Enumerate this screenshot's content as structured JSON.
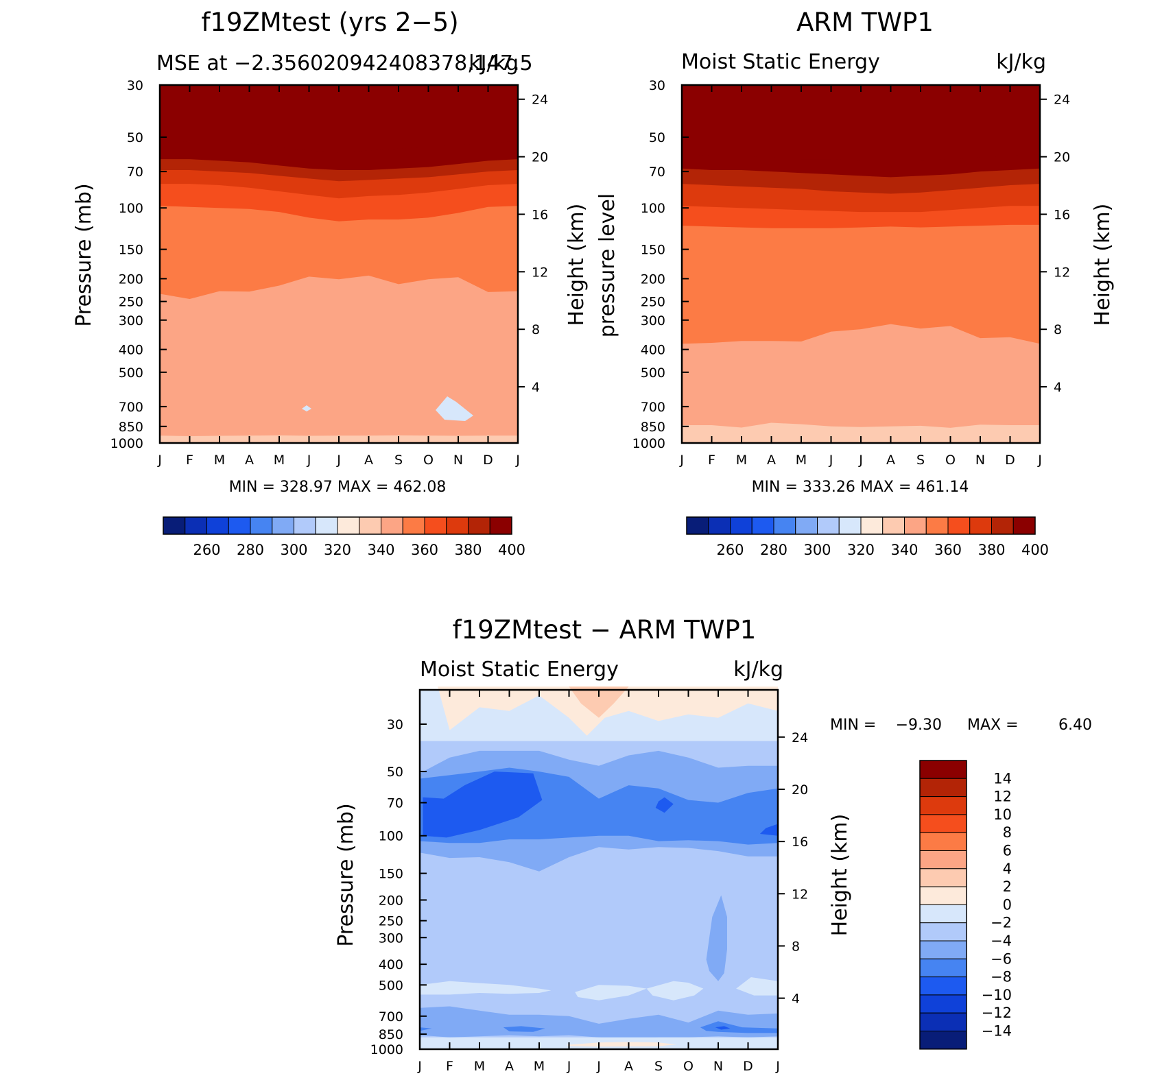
{
  "chart_data": [
    {
      "type": "heatmap",
      "panel": "model",
      "title": "f19ZMtest (yrs 2−5)",
      "subtitle_left": "MSE at −2.356020942408378,147.5",
      "subtitle_right": "kJ/kg",
      "ylabel": "Pressure (mb)",
      "ylabel_right": "Height (km)",
      "minmax": "MIN = 328.97 MAX = 462.08",
      "x": [
        "J",
        "F",
        "M",
        "A",
        "M",
        "J",
        "J",
        "A",
        "S",
        "O",
        "N",
        "D",
        "J"
      ],
      "y_ticks": [
        "30",
        "50",
        "70",
        "100",
        "150",
        "200",
        "250",
        "300",
        "400",
        "500",
        "700",
        "850",
        "1000"
      ],
      "height_ticks": [
        "24",
        "20",
        "16",
        "12",
        "8",
        "4"
      ],
      "contour_levels_bottom_to_top": [
        340,
        350,
        360,
        370,
        380,
        390,
        400
      ],
      "contour_level_pressures": {
        "340": [
          930,
          935,
          932,
          930,
          928,
          932,
          930,
          930,
          928,
          930,
          932,
          930,
          930
        ],
        "350": [
          232,
          244,
          226,
          227,
          214,
          196,
          201,
          194,
          211,
          201,
          197,
          228,
          226
        ],
        "360": [
          98,
          99,
          100,
          101,
          104,
          110,
          114,
          112,
          112,
          110,
          105,
          99,
          98
        ],
        "370": [
          79,
          79,
          80,
          82,
          85,
          88,
          91,
          89,
          88,
          86,
          83,
          80,
          79
        ],
        "380": [
          69,
          69,
          70,
          71,
          73,
          75,
          77,
          76,
          75,
          74,
          72,
          70,
          69
        ],
        "390": [
          62,
          62,
          63,
          64,
          66,
          68,
          69,
          69,
          68,
          67,
          65,
          63,
          62
        ],
        "400": [
          53,
          52,
          52,
          53,
          55,
          57,
          58,
          57,
          56,
          55,
          54,
          53,
          52
        ]
      },
      "minor_low_regions": "small 320-330 patches near 700 mb in Jun and Nov",
      "colorbar": {
        "labels": [
          "260",
          "280",
          "300",
          "320",
          "340",
          "360",
          "380",
          "400"
        ],
        "colors": [
          "#081d78",
          "#0b2fb5",
          "#0f41d9",
          "#1d5af0",
          "#4684f2",
          "#80aaf5",
          "#b1cafa",
          "#d7e7fb",
          "#fdeadb",
          "#fdcbb1",
          "#fca585",
          "#fc7b45",
          "#f54e1d",
          "#dd3a0d",
          "#b32406",
          "#8b0000"
        ]
      }
    },
    {
      "type": "heatmap",
      "panel": "obs",
      "title": "ARM TWP1",
      "subtitle_left": "Moist Static Energy",
      "subtitle_right": "kJ/kg",
      "ylabel": "pressure level",
      "ylabel_right": "Height (km)",
      "minmax": "MIN = 333.26 MAX = 461.14",
      "x": [
        "J",
        "F",
        "M",
        "A",
        "M",
        "J",
        "J",
        "A",
        "S",
        "O",
        "N",
        "D",
        "J"
      ],
      "y_ticks": [
        "30",
        "50",
        "70",
        "100",
        "150",
        "200",
        "250",
        "300",
        "400",
        "500",
        "700",
        "850",
        "1000"
      ],
      "height_ticks": [
        "24",
        "20",
        "16",
        "12",
        "8",
        "4"
      ],
      "contour_levels_bottom_to_top": [
        340,
        350,
        360,
        370,
        380,
        390,
        400
      ],
      "contour_level_pressures": {
        "340": [
          840,
          840,
          860,
          820,
          832,
          850,
          855,
          850,
          845,
          862,
          835,
          840,
          840
        ],
        "350": [
          378,
          375,
          368,
          368,
          370,
          336,
          328,
          312,
          326,
          318,
          358,
          355,
          378
        ],
        "360": [
          119,
          120,
          121,
          122,
          122,
          122,
          121,
          120,
          121,
          120,
          119,
          118,
          118
        ],
        "370": [
          98,
          99,
          100,
          101,
          102,
          103,
          104,
          104,
          104,
          102,
          100,
          98,
          98
        ],
        "380": [
          79,
          80,
          81,
          82,
          83,
          85,
          86,
          87,
          86,
          84,
          82,
          80,
          79
        ],
        "390": [
          68,
          69,
          69,
          70,
          71,
          72,
          73,
          74,
          73,
          72,
          70,
          69,
          68
        ],
        "400": [
          59,
          60,
          60,
          61,
          62,
          62,
          63,
          63,
          63,
          62,
          61,
          60,
          59
        ]
      },
      "colorbar": {
        "labels": [
          "260",
          "280",
          "300",
          "320",
          "340",
          "360",
          "380",
          "400"
        ],
        "colors": [
          "#081d78",
          "#0b2fb5",
          "#0f41d9",
          "#1d5af0",
          "#4684f2",
          "#80aaf5",
          "#b1cafa",
          "#d7e7fb",
          "#fdeadb",
          "#fdcbb1",
          "#fca585",
          "#fc7b45",
          "#f54e1d",
          "#dd3a0d",
          "#b32406",
          "#8b0000"
        ]
      }
    },
    {
      "type": "heatmap",
      "panel": "difference",
      "title": "f19ZMtest − ARM TWP1",
      "subtitle_left": "Moist Static Energy",
      "subtitle_right": "kJ/kg",
      "ylabel": "Pressure (mb)",
      "ylabel_right": "Height (km)",
      "minmax_label_min": "MIN =",
      "minmax_min": "−9.30",
      "minmax_label_max": "MAX =",
      "minmax_max": "6.40",
      "x": [
        "J",
        "F",
        "M",
        "A",
        "M",
        "J",
        "J",
        "A",
        "S",
        "O",
        "N",
        "D",
        "J"
      ],
      "y_ticks": [
        "30",
        "50",
        "70",
        "100",
        "150",
        "200",
        "250",
        "300",
        "400",
        "500",
        "700",
        "850",
        "1000"
      ],
      "height_ticks": [
        "24",
        "20",
        "16",
        "12",
        "8",
        "4"
      ],
      "background_value_range": [
        -4,
        -2
      ],
      "regions": [
        {
          "value_range": [
            0,
            2
          ],
          "pressure_range": [
            22,
            34
          ],
          "months": "Feb-Dec"
        },
        {
          "value_range": [
            2,
            4
          ],
          "pressure_range": [
            22,
            27
          ],
          "months": "Jun-Jul"
        },
        {
          "value_range": [
            -2,
            0
          ],
          "pressure_range": [
            31,
            38
          ],
          "months": "all"
        },
        {
          "value_range": [
            -6,
            -4
          ],
          "pressure_range": [
            45,
            60
          ],
          "months": "all"
        },
        {
          "value_range": [
            -8,
            -6
          ],
          "pressure_range": [
            55,
            125
          ],
          "months": "all"
        },
        {
          "value_range": [
            -10,
            -8
          ],
          "pressure_range": [
            63,
            105
          ],
          "months": "Jan-May"
        },
        {
          "value_range": [
            -10,
            -8
          ],
          "pressure_range": [
            65,
            80
          ],
          "months": "Sep"
        },
        {
          "value_range": [
            -6,
            -4
          ],
          "pressure_range": [
            190,
            440
          ],
          "months": "Nov"
        },
        {
          "value_range": [
            -2,
            0
          ],
          "pressure_range": [
            470,
            560
          ],
          "months": "Jan-Jun, Jul-Oct, Dec"
        },
        {
          "value_range": [
            -6,
            -4
          ],
          "pressure_range": [
            620,
            860
          ],
          "months": "all"
        },
        {
          "value_range": [
            -8,
            -6
          ],
          "pressure_range": [
            780,
            860
          ],
          "months": "Mar-May, Oct-Dec"
        },
        {
          "value_range": [
            0,
            2
          ],
          "pressure_range": [
            930,
            970
          ],
          "months": "Jun-Sep"
        }
      ],
      "colorbar": {
        "labels": [
          "14",
          "12",
          "10",
          "8",
          "6",
          "4",
          "2",
          "0",
          "−2",
          "−4",
          "−6",
          "−8",
          "−10",
          "−12",
          "−14"
        ],
        "colors_top_to_bottom": [
          "#8b0000",
          "#b32406",
          "#dd3a0d",
          "#f54e1d",
          "#fc7b45",
          "#fca585",
          "#fdcbb1",
          "#fdeadb",
          "#d7e7fb",
          "#b1cafa",
          "#80aaf5",
          "#4684f2",
          "#1d5af0",
          "#0f41d9",
          "#0b2fb5",
          "#081d78"
        ]
      }
    }
  ]
}
